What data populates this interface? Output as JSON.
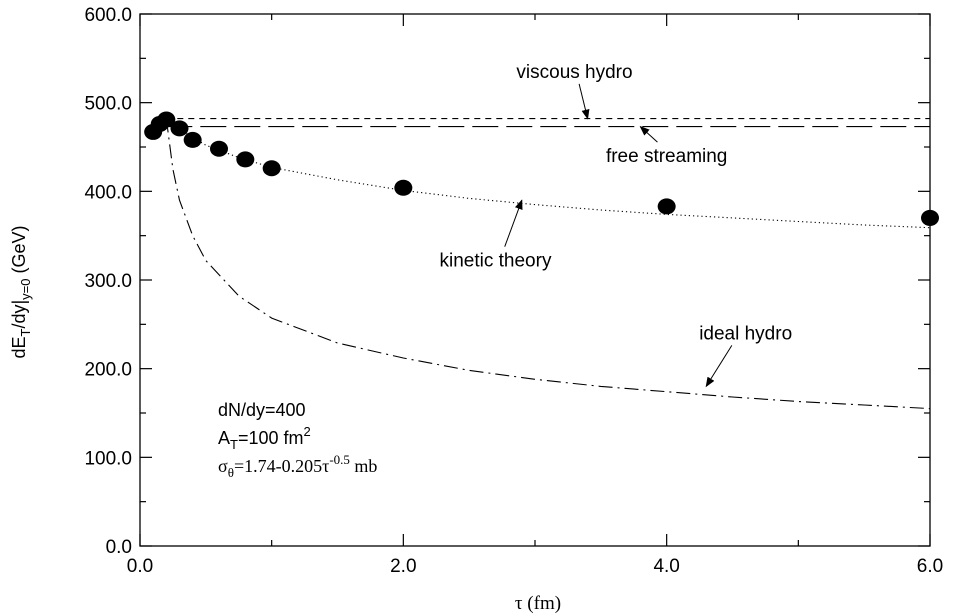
{
  "chart_data": {
    "type": "line",
    "title": "",
    "xlabel": "τ (fm)",
    "ylabel": "dE_T/dy|_y=0 (GeV)",
    "ylabel_parts": {
      "base": "dE",
      "sub1": "T",
      "mid": "/dy|",
      "sub2": "y=0",
      "unit": " (GeV)"
    },
    "xlim": [
      0,
      6
    ],
    "ylim": [
      0,
      600
    ],
    "x_ticks": [
      0,
      2,
      4,
      6
    ],
    "x_tick_labels": [
      "0.0",
      "2.0",
      "4.0",
      "6.0"
    ],
    "y_ticks": [
      0,
      100,
      200,
      300,
      400,
      500,
      600
    ],
    "y_tick_labels": [
      "0.0",
      "100.0",
      "200.0",
      "300.0",
      "400.0",
      "500.0",
      "600.0"
    ],
    "grid": false,
    "series": [
      {
        "name": "viscous hydro",
        "style": "short-dash",
        "x": [
          0.2,
          6.0
        ],
        "y": [
          482,
          482
        ]
      },
      {
        "name": "free streaming",
        "style": "long-dash",
        "x": [
          0.2,
          6.0
        ],
        "y": [
          473,
          473
        ]
      },
      {
        "name": "kinetic theory",
        "style": "dotted",
        "x": [
          0.2,
          0.3,
          0.5,
          0.75,
          1.0,
          1.5,
          2.0,
          2.5,
          3.0,
          3.5,
          4.0,
          4.5,
          5.0,
          5.5,
          6.0
        ],
        "y": [
          482,
          470,
          452,
          438,
          427,
          413,
          401,
          392,
          385,
          379,
          374,
          370,
          366,
          362,
          359
        ]
      },
      {
        "name": "ideal hydro",
        "style": "dash-dot",
        "x": [
          0.2,
          0.25,
          0.3,
          0.4,
          0.5,
          0.75,
          1.0,
          1.5,
          2.0,
          2.5,
          3.0,
          3.5,
          4.0,
          4.5,
          5.0,
          5.5,
          6.0
        ],
        "y": [
          482,
          425,
          390,
          350,
          322,
          282,
          257,
          229,
          212,
          198,
          188,
          180,
          174,
          168,
          163,
          159,
          155
        ]
      },
      {
        "name": "",
        "style": "marker",
        "x": [
          0.1,
          0.15,
          0.2,
          0.3,
          0.4,
          0.6,
          0.8,
          1.0,
          2.0,
          4.0,
          6.0
        ],
        "y": [
          467,
          476,
          481,
          471,
          458,
          448,
          436,
          426,
          404,
          383,
          370
        ]
      }
    ],
    "annotations": [
      {
        "text": "viscous hydro",
        "x": 3.3,
        "y": 528,
        "arrow_to": [
          3.4,
          482
        ]
      },
      {
        "text": "free streaming",
        "x": 4.0,
        "y": 433,
        "arrow_to": [
          3.8,
          473
        ]
      },
      {
        "text": "kinetic theory",
        "x": 2.7,
        "y": 315,
        "arrow_to": [
          2.9,
          390
        ]
      },
      {
        "text": "ideal hydro",
        "x": 4.6,
        "y": 233,
        "arrow_to": [
          4.3,
          180
        ]
      }
    ],
    "parameters": {
      "line1": "dN/dy=400",
      "line2_base": "A",
      "line2_sub": "T",
      "line2_mid": "=100 fm",
      "line2_sup": "2",
      "line3_base": "σ",
      "line3_sub": "θ",
      "line3_mid": "=1.74-0.205τ",
      "line3_sup": "-0.5",
      "line3_unit": " mb"
    }
  }
}
